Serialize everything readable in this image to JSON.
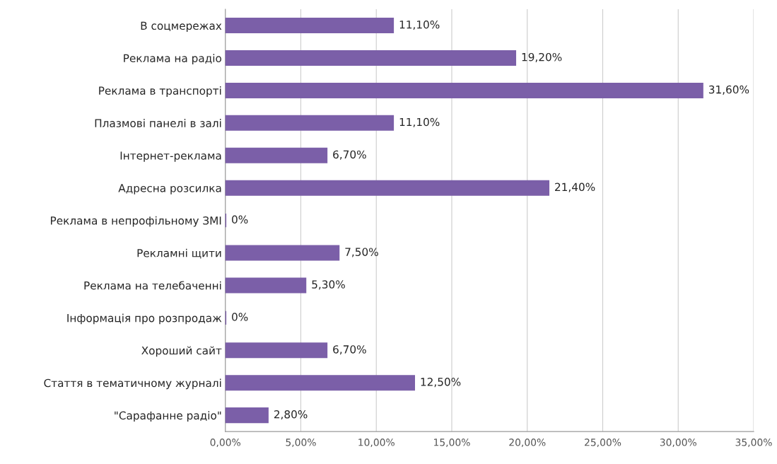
{
  "chart_data": {
    "type": "bar",
    "orientation": "horizontal",
    "categories": [
      "В соцмережах",
      "Реклама на радіо",
      "Реклама в транспорті",
      "Плазмові панелі в залі",
      "Інтернет-реклама",
      "Адресна розсилка",
      "Реклама в непрофільному ЗМІ",
      "Рекламні щити",
      "Реклама на телебаченні",
      "Інформація про розпродаж",
      "Хороший сайт",
      "Стаття в тематичному журналі",
      "\"Сарафанне радіо\""
    ],
    "values": [
      11.1,
      19.2,
      31.6,
      11.1,
      6.7,
      21.4,
      0,
      7.5,
      5.3,
      0,
      6.7,
      12.5,
      2.8
    ],
    "value_labels": [
      "11,10%",
      "19,20%",
      "31,60%",
      "11,10%",
      "6,70%",
      "21,40%",
      "0%",
      "7,50%",
      "5,30%",
      "0%",
      "6,70%",
      "12,50%",
      "2,80%"
    ],
    "color": "#7b5fa8",
    "xlim": [
      0,
      35
    ],
    "xticks": [
      {
        "value": 0,
        "label": "0,00%"
      },
      {
        "value": 5,
        "label": "5,00%"
      },
      {
        "value": 10,
        "label": "10,00%"
      },
      {
        "value": 15,
        "label": "15,00%"
      },
      {
        "value": 20,
        "label": "20,00%"
      },
      {
        "value": 25,
        "label": "25,00%"
      },
      {
        "value": 30,
        "label": "30,00%"
      },
      {
        "value": 35,
        "label": "35,00%"
      }
    ],
    "grid": "x"
  }
}
